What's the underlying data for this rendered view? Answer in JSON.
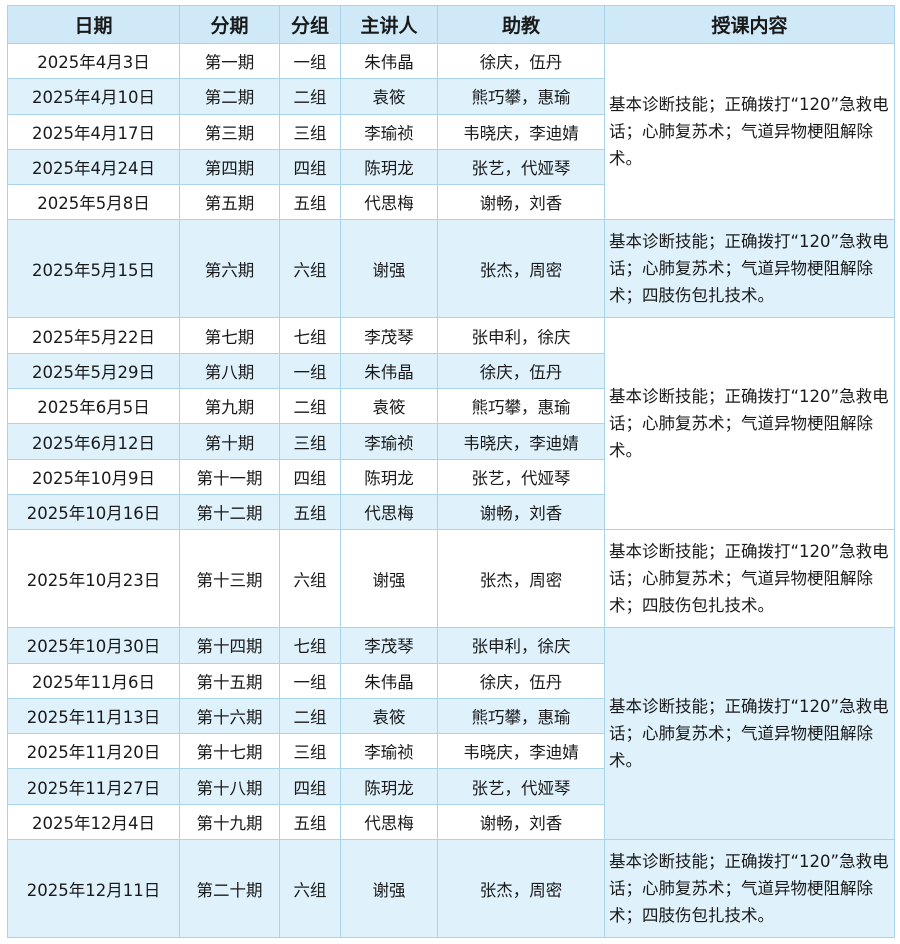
{
  "headers": [
    "日期",
    "分期",
    "分组",
    "主讲人",
    "助教",
    "授课内容"
  ],
  "colors": {
    "header_bg": "#cfe9f8",
    "stripe_bg": "#dff1fb",
    "border": "#a9d4ea"
  },
  "blocks": [
    {
      "content": "基本诊断技能；正确拨打“120”急救电话；心肺复苏术；气道异物梗阻解除术。",
      "rows": [
        [
          "2025年4月3日",
          "第一期",
          "一组",
          "朱伟晶",
          "徐庆，伍丹"
        ],
        [
          "2025年4月10日",
          "第二期",
          "二组",
          "袁筱",
          "熊巧攀，惠瑜"
        ],
        [
          "2025年4月17日",
          "第三期",
          "三组",
          "李瑜祯",
          "韦晓庆，李迪婧"
        ],
        [
          "2025年4月24日",
          "第四期",
          "四组",
          "陈玥龙",
          "张艺，代娅琴"
        ],
        [
          "2025年5月8日",
          "第五期",
          "五组",
          "代思梅",
          "谢畅，刘香"
        ]
      ]
    },
    {
      "content": "基本诊断技能；正确拨打“120”急救电话；心肺复苏术；气道异物梗阻解除术；四肢伤包扎技术。",
      "rows": [
        [
          "2025年5月15日",
          "第六期",
          "六组",
          "谢强",
          "张杰，周密"
        ]
      ]
    },
    {
      "content": "基本诊断技能；正确拨打“120”急救电话；心肺复苏术；气道异物梗阻解除术。",
      "rows": [
        [
          "2025年5月22日",
          "第七期",
          "七组",
          "李茂琴",
          "张申利，徐庆"
        ],
        [
          "2025年5月29日",
          "第八期",
          "一组",
          "朱伟晶",
          "徐庆，伍丹"
        ],
        [
          "2025年6月5日",
          "第九期",
          "二组",
          "袁筱",
          "熊巧攀，惠瑜"
        ],
        [
          "2025年6月12日",
          "第十期",
          "三组",
          "李瑜祯",
          "韦晓庆，李迪婧"
        ],
        [
          "2025年10月9日",
          "第十一期",
          "四组",
          "陈玥龙",
          "张艺，代娅琴"
        ],
        [
          "2025年10月16日",
          "第十二期",
          "五组",
          "代思梅",
          "谢畅，刘香"
        ]
      ]
    },
    {
      "content": "基本诊断技能；正确拨打“120”急救电话；心肺复苏术；气道异物梗阻解除术；四肢伤包扎技术。",
      "rows": [
        [
          "2025年10月23日",
          "第十三期",
          "六组",
          "谢强",
          "张杰，周密"
        ]
      ]
    },
    {
      "content": "基本诊断技能；正确拨打“120”急救电话；心肺复苏术；气道异物梗阻解除术。",
      "rows": [
        [
          "2025年10月30日",
          "第十四期",
          "七组",
          "李茂琴",
          "张申利，徐庆"
        ],
        [
          "2025年11月6日",
          "第十五期",
          "一组",
          "朱伟晶",
          "徐庆，伍丹"
        ],
        [
          "2025年11月13日",
          "第十六期",
          "二组",
          "袁筱",
          "熊巧攀，惠瑜"
        ],
        [
          "2025年11月20日",
          "第十七期",
          "三组",
          "李瑜祯",
          "韦晓庆，李迪婧"
        ],
        [
          "2025年11月27日",
          "第十八期",
          "四组",
          "陈玥龙",
          "张艺，代娅琴"
        ],
        [
          "2025年12月4日",
          "第十九期",
          "五组",
          "代思梅",
          "谢畅，刘香"
        ]
      ]
    },
    {
      "content": "基本诊断技能；正确拨打“120”急救电话；心肺复苏术；气道异物梗阻解除术；四肢伤包扎技术。",
      "rows": [
        [
          "2025年12月11日",
          "第二十期",
          "六组",
          "谢强",
          "张杰，周密"
        ]
      ]
    }
  ]
}
